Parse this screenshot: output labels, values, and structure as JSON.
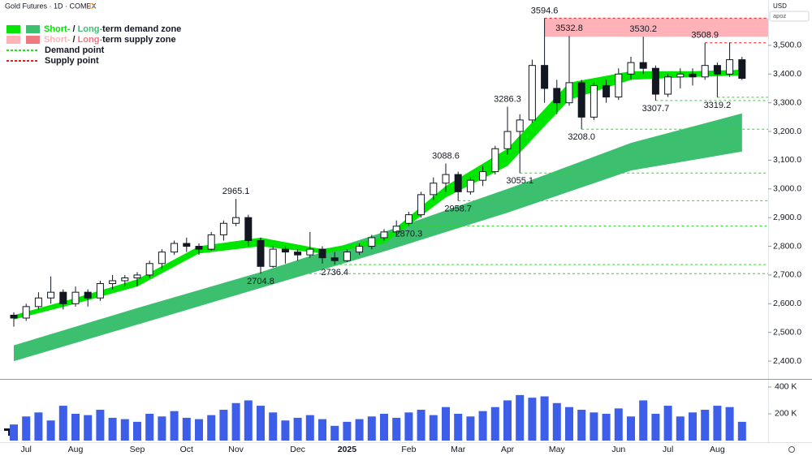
{
  "header": {
    "title": "Gold Futures · 1D · COMEX",
    "badge": "D",
    "currency": "USD",
    "account": "apoz"
  },
  "legend": [
    {
      "parts": [
        "Short-",
        " / ",
        "Long-",
        "term demand zone"
      ],
      "colors": [
        "#00e600",
        "#131722",
        "#3cbf6e",
        "#131722"
      ],
      "swatches": [
        "#00e600",
        "#3cbf6e"
      ],
      "style": "box"
    },
    {
      "parts": [
        "Short-",
        " / ",
        "Long-",
        "term supply zone"
      ],
      "colors": [
        "#ffb3b8",
        "#131722",
        "#f07880",
        "#131722"
      ],
      "swatches": [
        "#ffb3b8",
        "#f07880"
      ],
      "style": "box"
    },
    {
      "parts": [
        "Demand point"
      ],
      "colors": [
        "#131722"
      ],
      "swatches": [
        "#22dd22"
      ],
      "style": "dotted"
    },
    {
      "parts": [
        "Supply point"
      ],
      "colors": [
        "#131722"
      ],
      "swatches": [
        "#e02020"
      ],
      "style": "dotted"
    }
  ],
  "chart_data": [
    {
      "type": "candlestick",
      "categories": [
        null,
        "Jul",
        null,
        null,
        null,
        "Aug",
        null,
        null,
        null,
        null,
        "Sep",
        null,
        null,
        null,
        "Oct",
        null,
        null,
        null,
        "Nov",
        null,
        null,
        null,
        null,
        "Dec",
        null,
        null,
        null,
        "2025",
        null,
        null,
        null,
        null,
        "Feb",
        null,
        null,
        null,
        "Mar",
        null,
        null,
        null,
        "Apr",
        null,
        null,
        null,
        "May",
        null,
        null,
        null,
        null,
        "Jun",
        null,
        null,
        null,
        "Jul",
        null,
        null,
        null,
        "Aug",
        null,
        null
      ],
      "open": [
        2560,
        2550,
        2590,
        2620,
        2640,
        2600,
        2640,
        2620,
        2670,
        2680,
        2690,
        2700,
        2740,
        2780,
        2810,
        2800,
        2790,
        2840,
        2880,
        2900,
        2820,
        2730,
        2790,
        2780,
        2770,
        2790,
        2760,
        2750,
        2780,
        2800,
        2830,
        2850,
        2880,
        2910,
        2980,
        3020,
        3050,
        2990,
        3030,
        3060,
        3140,
        3200,
        3240,
        3430,
        3350,
        3300,
        3370,
        3250,
        3360,
        3320,
        3400,
        3440,
        3420,
        3330,
        3390,
        3400,
        3390,
        3430,
        3400,
        3450
      ],
      "high": [
        2570,
        2600,
        2640,
        2695,
        2650,
        2660,
        2650,
        2680,
        2700,
        2700,
        2710,
        2750,
        2790,
        2820,
        2830,
        2810,
        2850,
        2890,
        2965.1,
        2910,
        2830,
        2800,
        2800,
        2790,
        2850,
        2800,
        2780,
        2790,
        2810,
        2840,
        2860,
        2890,
        2920,
        2990,
        3040,
        3088.6,
        3060,
        3040,
        3080,
        3150,
        3286.3,
        3260,
        3450,
        3594.6,
        3380,
        3532.8,
        3380,
        3370,
        3380,
        3420,
        3460,
        3530.2,
        3430,
        3400,
        3420,
        3420,
        3508.9,
        3440,
        3510,
        3460
      ],
      "low": [
        2520,
        2540,
        2580,
        2600,
        2580,
        2590,
        2590,
        2610,
        2650,
        2660,
        2660,
        2690,
        2720,
        2770,
        2780,
        2770,
        2785,
        2820,
        2870,
        2800,
        2704.8,
        2725,
        2740,
        2750,
        2760,
        2740,
        2736.4,
        2745,
        2770,
        2790,
        2820,
        2840,
        2870.3,
        2900,
        2960,
        2990,
        2958.7,
        2980,
        3010,
        3050,
        3120,
        3055.1,
        3230,
        3300,
        3260,
        3290,
        3208,
        3240,
        3300,
        3310,
        3380,
        3400,
        3307.7,
        3320,
        3350,
        3360,
        3380,
        3319.2,
        3390,
        3380
      ],
      "close": [
        2550,
        2590,
        2620,
        2640,
        2600,
        2640,
        2620,
        2670,
        2680,
        2690,
        2700,
        2740,
        2780,
        2810,
        2800,
        2790,
        2840,
        2880,
        2900,
        2820,
        2730,
        2790,
        2780,
        2770,
        2790,
        2760,
        2750,
        2780,
        2800,
        2830,
        2850,
        2870,
        2910,
        2980,
        3020,
        3050,
        2990,
        3030,
        3060,
        3140,
        3200,
        3240,
        3430,
        3350,
        3300,
        3370,
        3250,
        3360,
        3320,
        3400,
        3440,
        3420,
        3330,
        3390,
        3400,
        3390,
        3430,
        3400,
        3450,
        3385
      ],
      "up_color": "#ffffff",
      "down_color": "#131722",
      "bands": [
        {
          "x": [
            0,
            10,
            20,
            30,
            40,
            50,
            59
          ],
          "upper": [
            2455,
            2585,
            2710,
            2850,
            3000,
            3160,
            3263
          ],
          "lower": [
            2400,
            2527,
            2655,
            2782,
            2917,
            3064,
            3130
          ],
          "color": "#3cbf6e"
        },
        {
          "x": [
            0,
            5,
            10,
            15,
            20,
            25,
            30,
            35,
            40,
            45,
            50,
            55,
            59
          ],
          "upper": [
            2560,
            2620,
            2685,
            2800,
            2830,
            2790,
            2830,
            3010,
            3140,
            3370,
            3410,
            3410,
            3415
          ],
          "lower": [
            2545,
            2600,
            2660,
            2775,
            2800,
            2775,
            2810,
            2970,
            3080,
            3310,
            3380,
            3390,
            3395
          ],
          "color": "#00e600"
        }
      ],
      "supply_zone": {
        "from": 43,
        "upper": 3594.6,
        "lower": 3530.2,
        "color": "#ffb3b8"
      },
      "annotations": [
        {
          "x": 18,
          "value": 2965.1,
          "side": "high"
        },
        {
          "x": 20,
          "value": 2704.8,
          "side": "low",
          "line": "demand"
        },
        {
          "x": 26,
          "value": 2736.4,
          "side": "low",
          "line": "demand"
        },
        {
          "x": 32,
          "value": 2870.3,
          "side": "low",
          "line": "demand"
        },
        {
          "x": 35,
          "value": 3088.6,
          "side": "high"
        },
        {
          "x": 36,
          "value": 2958.7,
          "side": "low",
          "line": "demand"
        },
        {
          "x": 40,
          "value": 3286.3,
          "side": "high"
        },
        {
          "x": 41,
          "value": 3055.1,
          "side": "low",
          "line": "demand"
        },
        {
          "x": 43,
          "value": 3594.6,
          "side": "high",
          "line": "supply"
        },
        {
          "x": 45,
          "value": 3532.8,
          "side": "high"
        },
        {
          "x": 46,
          "value": 3208,
          "label": "3208.0",
          "side": "low",
          "line": "demand"
        },
        {
          "x": 51,
          "value": 3530.2,
          "side": "high"
        },
        {
          "x": 52,
          "value": 3307.7,
          "side": "low",
          "line": "demand"
        },
        {
          "x": 56,
          "value": 3508.9,
          "side": "high",
          "line": "supply"
        },
        {
          "x": 57,
          "value": 3319.2,
          "side": "low",
          "line": "demand"
        }
      ],
      "ylim": [
        2338,
        3658
      ],
      "yticks": [
        {
          "value": 2400,
          "label": "2,400.0"
        },
        {
          "value": 2500,
          "label": "2,500.0"
        },
        {
          "value": 2600,
          "label": "2,600.0"
        },
        {
          "value": 2700,
          "label": "2,700.0"
        },
        {
          "value": 2800,
          "label": "2,800.0"
        },
        {
          "value": 2900,
          "label": "2,900.0"
        },
        {
          "value": 3000,
          "label": "3,000.0"
        },
        {
          "value": 3100,
          "label": "3,100.0"
        },
        {
          "value": 3200,
          "label": "3,200.0"
        },
        {
          "value": 3300,
          "label": "3,300.0"
        },
        {
          "value": 3400,
          "label": "3,400.0"
        },
        {
          "value": 3500,
          "label": "3,500.0"
        }
      ]
    },
    {
      "type": "bar",
      "color": "#3d5ee8",
      "values": [
        120000,
        180000,
        210000,
        150000,
        260000,
        200000,
        190000,
        230000,
        170000,
        160000,
        140000,
        200000,
        180000,
        220000,
        170000,
        160000,
        190000,
        230000,
        280000,
        300000,
        260000,
        210000,
        150000,
        170000,
        190000,
        160000,
        110000,
        140000,
        160000,
        180000,
        200000,
        170000,
        210000,
        230000,
        190000,
        250000,
        200000,
        180000,
        220000,
        250000,
        300000,
        340000,
        320000,
        330000,
        280000,
        250000,
        230000,
        210000,
        200000,
        240000,
        180000,
        300000,
        200000,
        260000,
        180000,
        210000,
        230000,
        260000,
        250000,
        140000
      ],
      "ylim": [
        0,
        442000
      ],
      "yticks": [
        {
          "value": 200000,
          "label": "200 K"
        },
        {
          "value": 400000,
          "label": "400 K"
        }
      ]
    }
  ]
}
